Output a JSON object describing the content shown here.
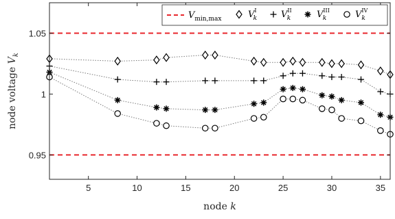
{
  "chart_data": {
    "type": "line",
    "xlabel": "node k",
    "ylabel": "node voltage V_k",
    "xlim": [
      1,
      36
    ],
    "ylim": [
      0.93,
      1.075
    ],
    "x_ticks": [
      5,
      10,
      15,
      20,
      25,
      30,
      35
    ],
    "y_ticks": [
      0.95,
      1,
      1.05
    ],
    "y_tick_labels": [
      "0.95",
      "1",
      "1.05"
    ],
    "grid": false,
    "legend_position": "top",
    "colors": {
      "limit": "#e8262b",
      "series": "#000000",
      "connector": "#7a7a7a"
    },
    "limits": {
      "name": "V_min,max",
      "values": [
        0.95,
        1.05
      ]
    },
    "series": [
      {
        "name": "V_k^I",
        "marker": "diamond",
        "x": [
          1,
          8,
          12,
          13,
          17,
          18,
          22,
          23,
          25,
          26,
          27,
          29,
          30,
          31,
          33,
          35,
          36
        ],
        "y": [
          1.029,
          1.027,
          1.028,
          1.03,
          1.032,
          1.032,
          1.027,
          1.026,
          1.026,
          1.027,
          1.026,
          1.026,
          1.025,
          1.025,
          1.024,
          1.019,
          1.016
        ]
      },
      {
        "name": "V_k^II",
        "marker": "plus",
        "x": [
          1,
          8,
          12,
          13,
          17,
          18,
          22,
          23,
          25,
          26,
          27,
          29,
          30,
          31,
          33,
          35,
          36
        ],
        "y": [
          1.023,
          1.012,
          1.01,
          1.01,
          1.011,
          1.011,
          1.011,
          1.011,
          1.015,
          1.017,
          1.017,
          1.015,
          1.014,
          1.014,
          1.012,
          1.002,
          1.0
        ]
      },
      {
        "name": "V_k^III",
        "marker": "asterisk",
        "x": [
          1,
          8,
          12,
          13,
          17,
          18,
          22,
          23,
          25,
          26,
          27,
          29,
          30,
          31,
          33,
          35,
          36
        ],
        "y": [
          1.018,
          0.995,
          0.989,
          0.988,
          0.987,
          0.987,
          0.992,
          0.993,
          1.004,
          1.005,
          1.004,
          0.999,
          0.998,
          0.995,
          0.993,
          0.983,
          0.981
        ]
      },
      {
        "name": "V_k^IV",
        "marker": "circle",
        "x": [
          1,
          8,
          12,
          13,
          17,
          18,
          22,
          23,
          25,
          26,
          27,
          29,
          30,
          31,
          33,
          35,
          36
        ],
        "y": [
          1.014,
          0.984,
          0.976,
          0.974,
          0.972,
          0.972,
          0.98,
          0.981,
          0.996,
          0.996,
          0.995,
          0.988,
          0.987,
          0.98,
          0.978,
          0.97,
          0.967
        ]
      }
    ],
    "legend": {
      "limit": {
        "base": "V",
        "sub": "min,max"
      },
      "items": [
        {
          "base": "V",
          "sup": "I",
          "sub": "k"
        },
        {
          "base": "V",
          "sup": "II",
          "sub": "k"
        },
        {
          "base": "V",
          "sup": "III",
          "sub": "k"
        },
        {
          "base": "V",
          "sup": "IV",
          "sub": "k"
        }
      ]
    }
  }
}
